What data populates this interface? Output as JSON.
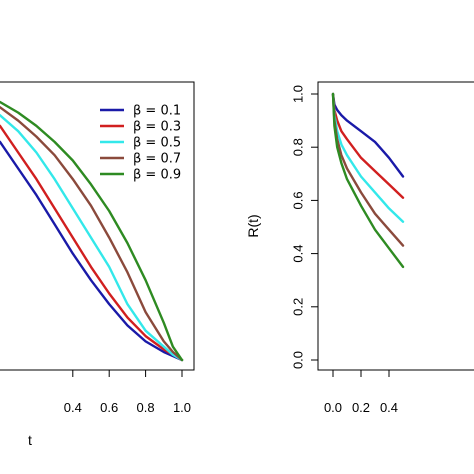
{
  "colors": {
    "b01": "#1a1aa8",
    "b03": "#d11f1f",
    "b05": "#33e8ea",
    "b07": "#8b4a3c",
    "b09": "#2e8b22"
  },
  "chart_data": [
    {
      "type": "line",
      "title": "",
      "xlabel": "t",
      "ylabel": "",
      "xlim": [
        0.0,
        1.0
      ],
      "ylim": [
        0.0,
        1.0
      ],
      "xticks": [
        "0.4",
        "0.6",
        "0.8",
        "1.0"
      ],
      "legend": {
        "placement": "top-right"
      },
      "series": [
        {
          "name": "β = 0.1",
          "color": "#1a1aa8",
          "x": [
            0.0,
            0.1,
            0.2,
            0.3,
            0.4,
            0.5,
            0.6,
            0.7,
            0.8,
            0.9,
            0.95,
            1.0
          ],
          "y": [
            0.82,
            0.72,
            0.62,
            0.51,
            0.4,
            0.3,
            0.21,
            0.13,
            0.07,
            0.03,
            0.015,
            0.0
          ]
        },
        {
          "name": "β = 0.3",
          "color": "#d11f1f",
          "x": [
            0.0,
            0.1,
            0.2,
            0.3,
            0.4,
            0.5,
            0.6,
            0.7,
            0.8,
            0.9,
            0.95,
            1.0
          ],
          "y": [
            0.88,
            0.78,
            0.68,
            0.57,
            0.46,
            0.35,
            0.25,
            0.16,
            0.09,
            0.04,
            0.02,
            0.0
          ]
        },
        {
          "name": "β = 0.5",
          "color": "#33e8ea",
          "x": [
            0.0,
            0.1,
            0.2,
            0.3,
            0.4,
            0.5,
            0.6,
            0.7,
            0.8,
            0.9,
            0.95,
            1.0
          ],
          "y": [
            0.92,
            0.86,
            0.78,
            0.68,
            0.57,
            0.46,
            0.35,
            0.21,
            0.11,
            0.05,
            0.02,
            0.0
          ]
        },
        {
          "name": "β = 0.7",
          "color": "#8b4a3c",
          "x": [
            0.0,
            0.1,
            0.2,
            0.3,
            0.4,
            0.5,
            0.6,
            0.7,
            0.8,
            0.9,
            0.95,
            1.0
          ],
          "y": [
            0.95,
            0.9,
            0.84,
            0.77,
            0.68,
            0.58,
            0.46,
            0.33,
            0.18,
            0.07,
            0.03,
            0.0
          ]
        },
        {
          "name": "β = 0.9",
          "color": "#2e8b22",
          "x": [
            0.0,
            0.1,
            0.2,
            0.3,
            0.4,
            0.5,
            0.6,
            0.7,
            0.8,
            0.9,
            0.95,
            1.0
          ],
          "y": [
            0.97,
            0.93,
            0.88,
            0.82,
            0.75,
            0.66,
            0.56,
            0.44,
            0.3,
            0.14,
            0.05,
            0.0
          ]
        }
      ]
    },
    {
      "type": "line",
      "title": "",
      "xlabel": "",
      "ylabel": "R(t)",
      "xlim": [
        0.0,
        1.0
      ],
      "ylim": [
        0.0,
        1.0
      ],
      "xticks": [
        "0.0",
        "0.2",
        "0.4"
      ],
      "yticks": [
        "0.0",
        "0.2",
        "0.4",
        "0.6",
        "0.8",
        "1.0"
      ],
      "series": [
        {
          "name": "β = 0.1",
          "color": "#1a1aa8",
          "x": [
            0.0,
            0.01,
            0.03,
            0.06,
            0.1,
            0.2,
            0.3,
            0.4,
            0.5
          ],
          "y": [
            1.0,
            0.96,
            0.94,
            0.92,
            0.9,
            0.86,
            0.82,
            0.76,
            0.69
          ]
        },
        {
          "name": "β = 0.3",
          "color": "#d11f1f",
          "x": [
            0.0,
            0.01,
            0.03,
            0.06,
            0.1,
            0.2,
            0.3,
            0.4,
            0.5
          ],
          "y": [
            1.0,
            0.94,
            0.9,
            0.86,
            0.83,
            0.76,
            0.71,
            0.66,
            0.61
          ]
        },
        {
          "name": "β = 0.5",
          "color": "#33e8ea",
          "x": [
            0.0,
            0.01,
            0.03,
            0.06,
            0.1,
            0.2,
            0.3,
            0.4,
            0.5
          ],
          "y": [
            1.0,
            0.92,
            0.86,
            0.81,
            0.77,
            0.69,
            0.63,
            0.57,
            0.52
          ]
        },
        {
          "name": "β = 0.7",
          "color": "#8b4a3c",
          "x": [
            0.0,
            0.01,
            0.03,
            0.06,
            0.1,
            0.2,
            0.3,
            0.4,
            0.5
          ],
          "y": [
            1.0,
            0.9,
            0.83,
            0.77,
            0.72,
            0.63,
            0.55,
            0.49,
            0.43
          ]
        },
        {
          "name": "β = 0.9",
          "color": "#2e8b22",
          "x": [
            0.0,
            0.01,
            0.03,
            0.06,
            0.1,
            0.2,
            0.3,
            0.4,
            0.5
          ],
          "y": [
            1.0,
            0.88,
            0.8,
            0.74,
            0.68,
            0.58,
            0.49,
            0.42,
            0.35
          ]
        }
      ]
    }
  ]
}
